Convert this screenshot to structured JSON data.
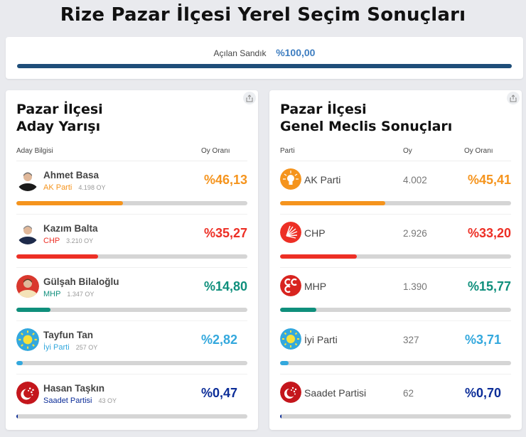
{
  "page": {
    "title": "Rize Pazar İlçesi Yerel Seçim Sonuçları"
  },
  "summary": {
    "label": "Açılan Sandık",
    "value": "%100,00",
    "progress": 100,
    "bar_color": "#1f4e79"
  },
  "mayor": {
    "title_line1": "Pazar İlçesi",
    "title_line2": "Aday Yarışı",
    "col_candidate": "Aday Bilgisi",
    "col_rate": "Oy Oranı",
    "share_icon": "share-icon",
    "candidates": [
      {
        "name": "Ahmet Basa",
        "party": "AK Parti",
        "votes": "4.198 OY",
        "pct": "%46,13",
        "pct_num": 46.13,
        "color": "#f5941d",
        "avatar": "candidate-photo"
      },
      {
        "name": "Kazım Balta",
        "party": "CHP",
        "votes": "3.210 OY",
        "pct": "%35,27",
        "pct_num": 35.27,
        "color": "#ed2f25",
        "avatar": "candidate-photo"
      },
      {
        "name": "Gülşah Bilaloğlu",
        "party": "MHP",
        "votes": "1.347 OY",
        "pct": "%14,80",
        "pct_num": 14.8,
        "color": "#0f8f7c",
        "avatar": "candidate-photo"
      },
      {
        "name": "Tayfun Tan",
        "party": "İyi Parti",
        "votes": "257 OY",
        "pct": "%2,82",
        "pct_num": 2.82,
        "color": "#33a8dd",
        "avatar": "iyi-parti-logo"
      },
      {
        "name": "Hasan Taşkın",
        "party": "Saadet Partisi",
        "votes": "43 OY",
        "pct": "%0,47",
        "pct_num": 0.47,
        "color": "#0c2d98",
        "avatar": "saadet-logo"
      }
    ]
  },
  "council": {
    "title_line1": "Pazar İlçesi",
    "title_line2": "Genel Meclis Sonuçları",
    "col_party": "Parti",
    "col_votes": "Oy",
    "col_rate": "Oy Oranı",
    "share_icon": "share-icon",
    "parties": [
      {
        "name": "AK Parti",
        "votes": "4.002",
        "pct": "%45,41",
        "pct_num": 45.41,
        "color": "#f5941d",
        "logo": "akp-logo"
      },
      {
        "name": "CHP",
        "votes": "2.926",
        "pct": "%33,20",
        "pct_num": 33.2,
        "color": "#ed2f25",
        "logo": "chp-logo"
      },
      {
        "name": "MHP",
        "votes": "1.390",
        "pct": "%15,77",
        "pct_num": 15.77,
        "color": "#0f8f7c",
        "logo": "mhp-logo"
      },
      {
        "name": "İyi Parti",
        "votes": "327",
        "pct": "%3,71",
        "pct_num": 3.71,
        "color": "#33a8dd",
        "logo": "iyi-parti-logo"
      },
      {
        "name": "Saadet Partisi",
        "votes": "62",
        "pct": "%0,70",
        "pct_num": 0.7,
        "color": "#0c2d98",
        "logo": "saadet-logo"
      }
    ]
  }
}
